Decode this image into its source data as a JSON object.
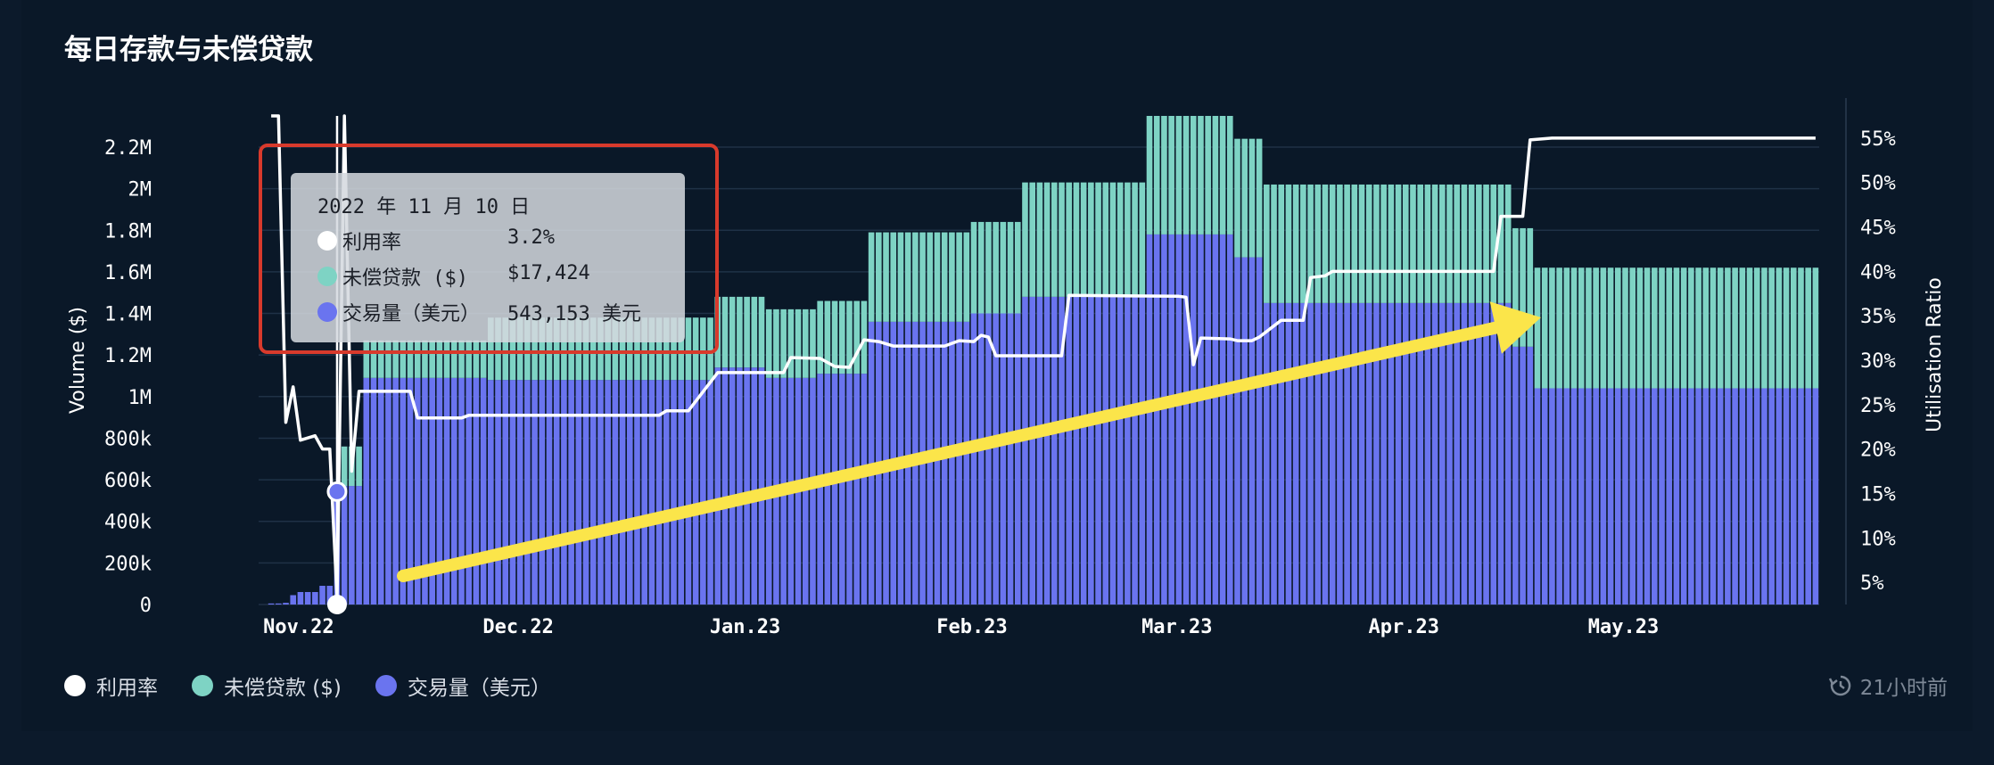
{
  "title": "每日存款与未偿贷款",
  "colors": {
    "utilisation": "#ffffff",
    "outstanding": "#7ed3c4",
    "volume": "#6a74ef",
    "arrow": "#fbe54a",
    "highlight": "#d83a2c"
  },
  "chart_data": {
    "type": "bar",
    "xlabel": "",
    "ylabel": "Volume ($)",
    "y2label": "Utilisation Ratio",
    "ylim": [
      0,
      2350000
    ],
    "y2lim": [
      2.5,
      57.5
    ],
    "y_ticks": [
      "0",
      "200k",
      "400k",
      "600k",
      "800k",
      "1M",
      "1.2M",
      "1.4M",
      "1.6M",
      "1.8M",
      "2M",
      "2.2M"
    ],
    "y2_ticks": [
      "5%",
      "10%",
      "15%",
      "20%",
      "25%",
      "30%",
      "35%",
      "40%",
      "45%",
      "50%",
      "55%"
    ],
    "x_ticks": [
      "Nov.22",
      "Dec.22",
      "Jan.23",
      "Feb.23",
      "Mar.23",
      "Apr.23",
      "May.23"
    ],
    "x_range": [
      "2022-11-01",
      "2023-05-31"
    ],
    "stacked": true,
    "series": [
      {
        "name": "交易量（美元）",
        "values_by_period": [
          {
            "from": "2022-11-01",
            "to": "2022-11-02",
            "value": 5000
          },
          {
            "from": "2022-11-03",
            "to": "2022-11-03",
            "value": 8000
          },
          {
            "from": "2022-11-04",
            "to": "2022-11-04",
            "value": 45000
          },
          {
            "from": "2022-11-05",
            "to": "2022-11-07",
            "value": 60000
          },
          {
            "from": "2022-11-08",
            "to": "2022-11-09",
            "value": 90000
          },
          {
            "from": "2022-11-10",
            "to": "2022-11-10",
            "value": 543153
          },
          {
            "from": "2022-11-11",
            "to": "2022-11-13",
            "value": 570000
          },
          {
            "from": "2022-11-14",
            "to": "2022-11-30",
            "value": 1090000
          },
          {
            "from": "2022-12-01",
            "to": "2022-12-31",
            "value": 1080000
          },
          {
            "from": "2023-01-01",
            "to": "2023-01-07",
            "value": 1140000
          },
          {
            "from": "2023-01-08",
            "to": "2023-01-14",
            "value": 1090000
          },
          {
            "from": "2023-01-15",
            "to": "2023-01-21",
            "value": 1110000
          },
          {
            "from": "2023-01-22",
            "to": "2023-02-04",
            "value": 1360000
          },
          {
            "from": "2023-02-05",
            "to": "2023-02-11",
            "value": 1400000
          },
          {
            "from": "2023-02-12",
            "to": "2023-02-28",
            "value": 1480000
          },
          {
            "from": "2023-03-01",
            "to": "2023-03-12",
            "value": 1780000
          },
          {
            "from": "2023-03-13",
            "to": "2023-03-16",
            "value": 1670000
          },
          {
            "from": "2023-03-17",
            "to": "2023-04-19",
            "value": 1450000
          },
          {
            "from": "2023-04-20",
            "to": "2023-04-22",
            "value": 1240000
          },
          {
            "from": "2023-04-23",
            "to": "2023-05-31",
            "value": 1040000
          }
        ]
      },
      {
        "name": "未偿贷款 ($)",
        "values_by_period": [
          {
            "from": "2022-11-01",
            "to": "2022-11-09",
            "value": 0
          },
          {
            "from": "2022-11-10",
            "to": "2022-11-10",
            "value": 17424
          },
          {
            "from": "2022-11-11",
            "to": "2022-11-13",
            "value": 190000
          },
          {
            "from": "2022-11-14",
            "to": "2022-11-30",
            "value": 180000
          },
          {
            "from": "2022-12-01",
            "to": "2022-12-31",
            "value": 300000
          },
          {
            "from": "2023-01-01",
            "to": "2023-01-07",
            "value": 340000
          },
          {
            "from": "2023-01-08",
            "to": "2023-01-14",
            "value": 330000
          },
          {
            "from": "2023-01-15",
            "to": "2023-01-21",
            "value": 350000
          },
          {
            "from": "2023-01-22",
            "to": "2023-02-04",
            "value": 430000
          },
          {
            "from": "2023-02-05",
            "to": "2023-02-11",
            "value": 440000
          },
          {
            "from": "2023-02-12",
            "to": "2023-02-28",
            "value": 550000
          },
          {
            "from": "2023-03-01",
            "to": "2023-03-12",
            "value": 570000
          },
          {
            "from": "2023-03-13",
            "to": "2023-03-16",
            "value": 570000
          },
          {
            "from": "2023-03-17",
            "to": "2023-04-19",
            "value": 570000
          },
          {
            "from": "2023-04-20",
            "to": "2023-04-22",
            "value": 570000
          },
          {
            "from": "2023-04-23",
            "to": "2023-05-31",
            "value": 580000
          }
        ]
      },
      {
        "name": "利用率",
        "axis": "right",
        "type": "line",
        "points": [
          [
            "2022-11-01",
            58
          ],
          [
            "2022-11-02",
            58
          ],
          [
            "2022-11-03",
            23
          ],
          [
            "2022-11-04",
            27
          ],
          [
            "2022-11-05",
            21
          ],
          [
            "2022-11-07",
            21.5
          ],
          [
            "2022-11-08",
            20
          ],
          [
            "2022-11-09",
            20
          ],
          [
            "2022-11-10",
            3.2
          ],
          [
            "2022-11-11",
            58
          ],
          [
            "2022-11-12",
            17.5
          ],
          [
            "2022-11-13",
            26.5
          ],
          [
            "2022-11-20",
            26.5
          ],
          [
            "2022-11-21",
            23.5
          ],
          [
            "2022-11-27",
            23.5
          ],
          [
            "2022-11-28",
            23.8
          ],
          [
            "2022-12-24",
            23.8
          ],
          [
            "2022-12-25",
            24.3
          ],
          [
            "2022-12-28",
            24.3
          ],
          [
            "2023-01-01",
            28.6
          ],
          [
            "2023-01-10",
            28.6
          ],
          [
            "2023-01-11",
            30.3
          ],
          [
            "2023-01-15",
            30.2
          ],
          [
            "2023-01-17",
            29.3
          ],
          [
            "2023-01-19",
            29.2
          ],
          [
            "2023-01-21",
            32.3
          ],
          [
            "2023-01-23",
            32.1
          ],
          [
            "2023-01-25",
            31.6
          ],
          [
            "2023-02-01",
            31.6
          ],
          [
            "2023-02-03",
            32.2
          ],
          [
            "2023-02-05",
            32.1
          ],
          [
            "2023-02-06",
            32.8
          ],
          [
            "2023-02-07",
            32.6
          ],
          [
            "2023-02-08",
            30.5
          ],
          [
            "2023-02-17",
            30.5
          ],
          [
            "2023-02-18",
            37.3
          ],
          [
            "2023-03-05",
            37.2
          ],
          [
            "2023-03-06",
            37.1
          ],
          [
            "2023-03-07",
            29.5
          ],
          [
            "2023-03-08",
            32.5
          ],
          [
            "2023-03-12",
            32.4
          ],
          [
            "2023-03-13",
            32.2
          ],
          [
            "2023-03-15",
            32.2
          ],
          [
            "2023-03-16",
            32.6
          ],
          [
            "2023-03-19",
            34.5
          ],
          [
            "2023-03-22",
            34.5
          ],
          [
            "2023-03-23",
            39.3
          ],
          [
            "2023-03-25",
            39.5
          ],
          [
            "2023-03-26",
            40
          ],
          [
            "2023-04-17",
            40
          ],
          [
            "2023-04-18",
            46.2
          ],
          [
            "2023-04-21",
            46.2
          ],
          [
            "2023-04-22",
            54.8
          ],
          [
            "2023-04-25",
            55
          ],
          [
            "2023-05-31",
            55
          ]
        ]
      }
    ],
    "annotation": "arrow",
    "highlight_date": "2022-11-10",
    "legend_position": "bottom-left",
    "grid": true
  },
  "tooltip": {
    "date": "2022 年 11 月 10 日",
    "rows": [
      {
        "label": "利用率",
        "value": "3.2%",
        "color": "#ffffff"
      },
      {
        "label": "未偿贷款 ($)",
        "value": "$17,424",
        "color": "#7ed3c4"
      },
      {
        "label": "交易量（美元）",
        "value": "543,153 美元",
        "color": "#6a74ef"
      }
    ]
  },
  "legend": [
    {
      "label": "利用率",
      "color": "#ffffff"
    },
    {
      "label": "未偿贷款 ($)",
      "color": "#7ed3c4"
    },
    {
      "label": "交易量（美元）",
      "color": "#6a74ef"
    }
  ],
  "updated": {
    "icon": "clock-refresh-icon",
    "label": "21小时前"
  }
}
